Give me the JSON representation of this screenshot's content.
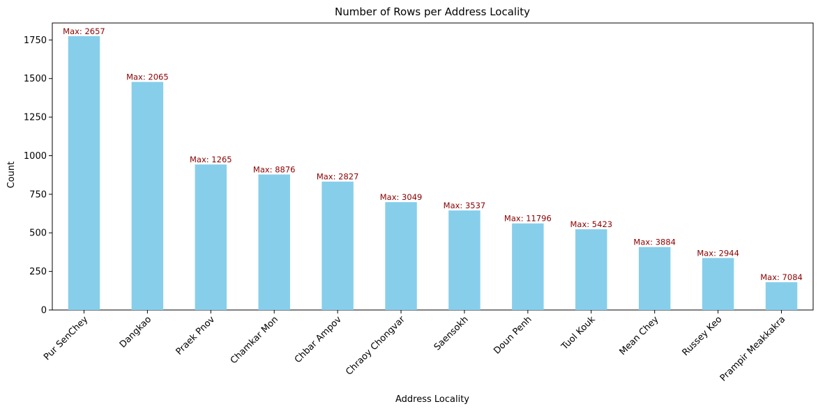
{
  "chart_data": {
    "type": "bar",
    "title": "Number of Rows per Address Locality",
    "xlabel": "Address Locality",
    "ylabel": "Count",
    "categories": [
      "Pur SenChey",
      "Dangkao",
      "Praek Pnov",
      "Chamkar Mon",
      "Chbar Ampov",
      "Chraoy Chongvar",
      "Saensokh",
      "Doun Penh",
      "Tuol Kouk",
      "Mean Chey",
      "Russey Keo",
      "Prampir Meakkakra"
    ],
    "values": [
      1775,
      1478,
      943,
      878,
      832,
      699,
      645,
      561,
      523,
      408,
      337,
      180
    ],
    "bar_labels": [
      "Max: 2657",
      "Max: 2065",
      "Max: 1265",
      "Max: 8876",
      "Max: 2827",
      "Max: 3049",
      "Max: 3537",
      "Max: 11796",
      "Max: 5423",
      "Max: 3884",
      "Max: 2944",
      "Max: 7084"
    ],
    "ylim": [
      0,
      1860
    ],
    "yticks": [
      0,
      250,
      500,
      750,
      1000,
      1250,
      1500,
      1750
    ],
    "ytick_labels": [
      "0",
      "250",
      "500",
      "750",
      "1000",
      "1250",
      "1500",
      "1750"
    ],
    "x_tick_rotation": 45,
    "grid": false,
    "bar_color": "#87ceeb",
    "label_color": "#8b0000"
  }
}
